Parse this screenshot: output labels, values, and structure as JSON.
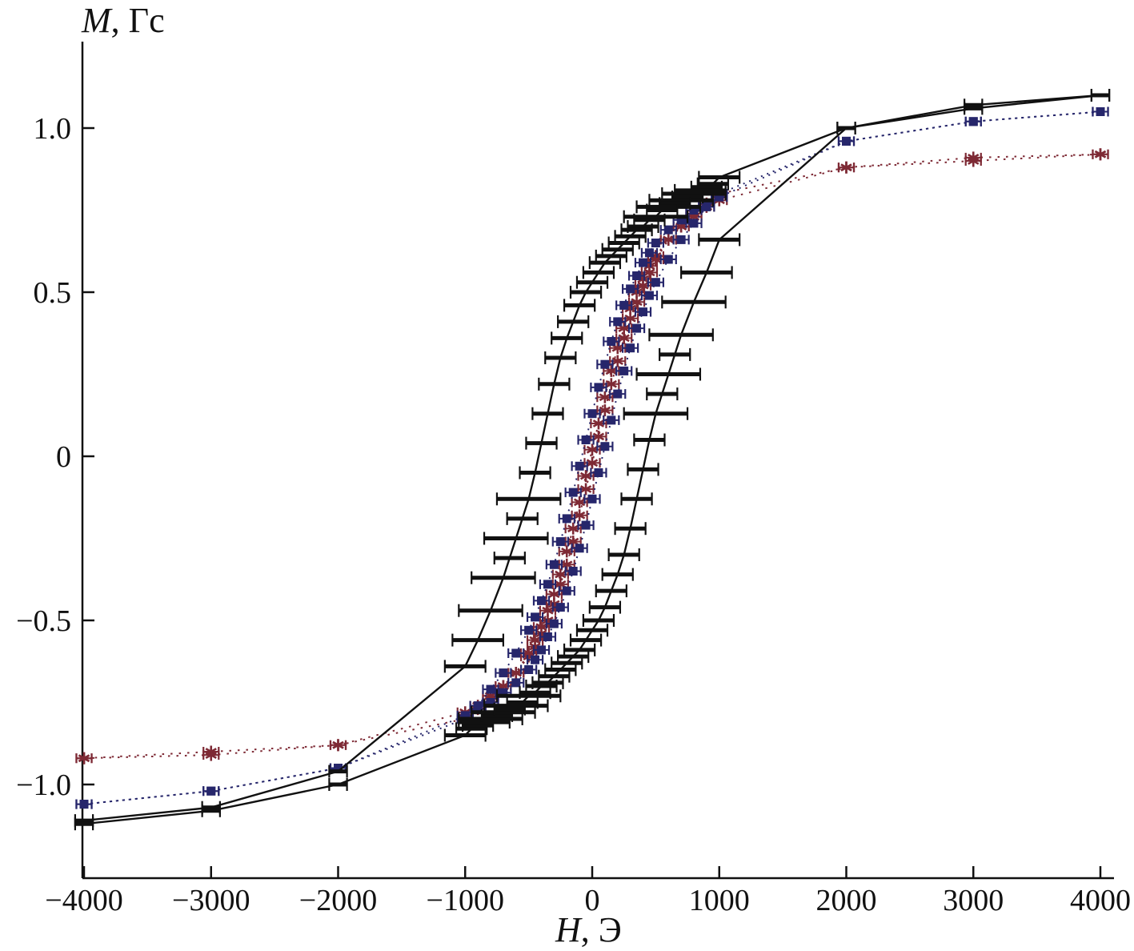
{
  "chart_data": {
    "type": "line",
    "title": "",
    "xlabel": {
      "variable": "H",
      "unit": ", Э"
    },
    "ylabel": {
      "variable": "M",
      "unit": ", Гс"
    },
    "xlim": [
      -4000,
      4000
    ],
    "ylim": [
      -1.25,
      1.25
    ],
    "grid": false,
    "legend": "none",
    "x_ticks": [
      -4000,
      -3000,
      -2000,
      -1000,
      0,
      1000,
      2000,
      3000,
      4000
    ],
    "x_tick_labels": [
      "−4000",
      "−3000",
      "−2000",
      "−1000",
      "0",
      "1000",
      "2000",
      "3000",
      "4000"
    ],
    "y_ticks": [
      -1.0,
      -0.5,
      0,
      0.5,
      1.0
    ],
    "y_tick_labels": [
      "−1.0",
      "−0.5",
      "0",
      "0.5",
      "1.0"
    ],
    "axis_color": "#111111",
    "series": [
      {
        "name": "red-dotted-stars",
        "color": "#7e2a35",
        "line_style": "dotted",
        "line_width": 2,
        "marker": "star",
        "xerr": 60,
        "descending": [
          [
            4000,
            0.92
          ],
          [
            3000,
            0.91
          ],
          [
            2000,
            0.88
          ],
          [
            1000,
            0.78
          ],
          [
            900,
            0.76
          ],
          [
            800,
            0.73
          ],
          [
            700,
            0.7
          ],
          [
            600,
            0.66
          ],
          [
            500,
            0.61
          ],
          [
            450,
            0.58
          ],
          [
            400,
            0.54
          ],
          [
            350,
            0.5
          ],
          [
            300,
            0.45
          ],
          [
            250,
            0.39
          ],
          [
            200,
            0.33
          ],
          [
            150,
            0.26
          ],
          [
            100,
            0.18
          ],
          [
            50,
            0.1
          ],
          [
            0,
            0.02
          ],
          [
            -50,
            -0.06
          ],
          [
            -100,
            -0.14
          ],
          [
            -150,
            -0.22
          ],
          [
            -200,
            -0.29
          ],
          [
            -250,
            -0.36
          ],
          [
            -300,
            -0.42
          ],
          [
            -350,
            -0.47
          ],
          [
            -400,
            -0.52
          ],
          [
            -450,
            -0.56
          ],
          [
            -500,
            -0.6
          ],
          [
            -600,
            -0.66
          ],
          [
            -700,
            -0.7
          ],
          [
            -800,
            -0.74
          ],
          [
            -900,
            -0.77
          ],
          [
            -1000,
            -0.8
          ],
          [
            -2000,
            -0.88
          ],
          [
            -3000,
            -0.9
          ],
          [
            -4000,
            -0.92
          ]
        ],
        "ascending": [
          [
            -4000,
            -0.92
          ],
          [
            -3000,
            -0.91
          ],
          [
            -2000,
            -0.88
          ],
          [
            -1000,
            -0.78
          ],
          [
            -900,
            -0.76
          ],
          [
            -800,
            -0.73
          ],
          [
            -700,
            -0.7
          ],
          [
            -600,
            -0.66
          ],
          [
            -500,
            -0.61
          ],
          [
            -450,
            -0.58
          ],
          [
            -400,
            -0.54
          ],
          [
            -350,
            -0.5
          ],
          [
            -300,
            -0.45
          ],
          [
            -250,
            -0.39
          ],
          [
            -200,
            -0.33
          ],
          [
            -150,
            -0.26
          ],
          [
            -100,
            -0.18
          ],
          [
            -50,
            -0.1
          ],
          [
            0,
            -0.02
          ],
          [
            50,
            0.06
          ],
          [
            100,
            0.14
          ],
          [
            150,
            0.22
          ],
          [
            200,
            0.29
          ],
          [
            250,
            0.36
          ],
          [
            300,
            0.42
          ],
          [
            350,
            0.47
          ],
          [
            400,
            0.52
          ],
          [
            450,
            0.56
          ],
          [
            500,
            0.6
          ],
          [
            600,
            0.66
          ],
          [
            700,
            0.7
          ],
          [
            800,
            0.74
          ],
          [
            900,
            0.77
          ],
          [
            1000,
            0.8
          ],
          [
            2000,
            0.88
          ],
          [
            3000,
            0.9
          ],
          [
            4000,
            0.92
          ]
        ]
      },
      {
        "name": "blue-dashdot-squares",
        "color": "#26266b",
        "line_style": "dash-dot",
        "line_width": 2,
        "marker": "square",
        "xerr": 60,
        "descending": [
          [
            4000,
            1.05
          ],
          [
            3000,
            1.02
          ],
          [
            2000,
            0.96
          ],
          [
            1000,
            0.79
          ],
          [
            900,
            0.77
          ],
          [
            800,
            0.75
          ],
          [
            700,
            0.72
          ],
          [
            600,
            0.69
          ],
          [
            500,
            0.65
          ],
          [
            450,
            0.62
          ],
          [
            400,
            0.59
          ],
          [
            350,
            0.55
          ],
          [
            300,
            0.51
          ],
          [
            250,
            0.46
          ],
          [
            200,
            0.41
          ],
          [
            150,
            0.35
          ],
          [
            100,
            0.28
          ],
          [
            50,
            0.21
          ],
          [
            0,
            0.13
          ],
          [
            -50,
            0.05
          ],
          [
            -100,
            -0.03
          ],
          [
            -150,
            -0.11
          ],
          [
            -200,
            -0.19
          ],
          [
            -250,
            -0.26
          ],
          [
            -300,
            -0.33
          ],
          [
            -350,
            -0.39
          ],
          [
            -400,
            -0.44
          ],
          [
            -450,
            -0.49
          ],
          [
            -500,
            -0.53
          ],
          [
            -600,
            -0.6
          ],
          [
            -700,
            -0.66
          ],
          [
            -800,
            -0.71
          ],
          [
            -900,
            -0.76
          ],
          [
            -1000,
            -0.8
          ],
          [
            -2000,
            -0.95
          ],
          [
            -3000,
            -1.02
          ],
          [
            -4000,
            -1.06
          ]
        ],
        "ascending": [
          [
            -4000,
            -1.06
          ],
          [
            -3000,
            -1.02
          ],
          [
            -2000,
            -0.95
          ],
          [
            -1000,
            -0.79
          ],
          [
            -900,
            -0.77
          ],
          [
            -800,
            -0.75
          ],
          [
            -700,
            -0.72
          ],
          [
            -600,
            -0.69
          ],
          [
            -500,
            -0.65
          ],
          [
            -450,
            -0.62
          ],
          [
            -400,
            -0.59
          ],
          [
            -350,
            -0.55
          ],
          [
            -300,
            -0.51
          ],
          [
            -250,
            -0.46
          ],
          [
            -200,
            -0.41
          ],
          [
            -150,
            -0.35
          ],
          [
            -100,
            -0.28
          ],
          [
            -50,
            -0.21
          ],
          [
            0,
            -0.13
          ],
          [
            50,
            -0.05
          ],
          [
            100,
            0.03
          ],
          [
            150,
            0.11
          ],
          [
            200,
            0.19
          ],
          [
            250,
            0.26
          ],
          [
            300,
            0.33
          ],
          [
            350,
            0.39
          ],
          [
            400,
            0.44
          ],
          [
            450,
            0.49
          ],
          [
            500,
            0.53
          ],
          [
            600,
            0.6
          ],
          [
            700,
            0.66
          ],
          [
            800,
            0.71
          ],
          [
            900,
            0.76
          ],
          [
            1000,
            0.8
          ],
          [
            2000,
            0.96
          ],
          [
            3000,
            1.02
          ],
          [
            4000,
            1.05
          ]
        ]
      },
      {
        "name": "black-solid-errorbars",
        "color": "#111111",
        "line_style": "solid",
        "line_width": 2.4,
        "marker": "hbar",
        "xerr": 120,
        "descending": [
          [
            4000,
            1.1,
            70
          ],
          [
            3000,
            1.06,
            70
          ],
          [
            2000,
            1.0,
            70
          ],
          [
            1000,
            0.85,
            160
          ],
          [
            950,
            0.83
          ],
          [
            900,
            0.82
          ],
          [
            850,
            0.81,
            200
          ],
          [
            800,
            0.8,
            250
          ],
          [
            750,
            0.79
          ],
          [
            700,
            0.78,
            250
          ],
          [
            650,
            0.77
          ],
          [
            600,
            0.76,
            250
          ],
          [
            550,
            0.75
          ],
          [
            500,
            0.73,
            250
          ],
          [
            450,
            0.72
          ],
          [
            400,
            0.7
          ],
          [
            350,
            0.69
          ],
          [
            300,
            0.67
          ],
          [
            250,
            0.65
          ],
          [
            200,
            0.63
          ],
          [
            150,
            0.61
          ],
          [
            100,
            0.59
          ],
          [
            50,
            0.56
          ],
          [
            0,
            0.53
          ],
          [
            -50,
            0.5
          ],
          [
            -100,
            0.46
          ],
          [
            -150,
            0.41
          ],
          [
            -200,
            0.36
          ],
          [
            -250,
            0.3
          ],
          [
            -300,
            0.22
          ],
          [
            -350,
            0.13
          ],
          [
            -400,
            0.04
          ],
          [
            -450,
            -0.05
          ],
          [
            -500,
            -0.13,
            250
          ],
          [
            -550,
            -0.19
          ],
          [
            -600,
            -0.25,
            250
          ],
          [
            -650,
            -0.31
          ],
          [
            -700,
            -0.37,
            250
          ],
          [
            -800,
            -0.47,
            250
          ],
          [
            -900,
            -0.56,
            200
          ],
          [
            -1000,
            -0.64,
            160
          ],
          [
            -2000,
            -0.96,
            70
          ],
          [
            -3000,
            -1.07,
            70
          ],
          [
            -4000,
            -1.11,
            70
          ]
        ],
        "ascending": [
          [
            -4000,
            -1.12,
            70
          ],
          [
            -3000,
            -1.08,
            70
          ],
          [
            -2000,
            -1.0,
            70
          ],
          [
            -1000,
            -0.85,
            160
          ],
          [
            -950,
            -0.83
          ],
          [
            -900,
            -0.82
          ],
          [
            -850,
            -0.81,
            200
          ],
          [
            -800,
            -0.8,
            250
          ],
          [
            -750,
            -0.79
          ],
          [
            -700,
            -0.78,
            250
          ],
          [
            -650,
            -0.77
          ],
          [
            -600,
            -0.76,
            250
          ],
          [
            -550,
            -0.75
          ],
          [
            -500,
            -0.73,
            250
          ],
          [
            -450,
            -0.72
          ],
          [
            -400,
            -0.7
          ],
          [
            -350,
            -0.69
          ],
          [
            -300,
            -0.67
          ],
          [
            -250,
            -0.65
          ],
          [
            -200,
            -0.63
          ],
          [
            -150,
            -0.61
          ],
          [
            -100,
            -0.59
          ],
          [
            -50,
            -0.56
          ],
          [
            0,
            -0.53
          ],
          [
            50,
            -0.5
          ],
          [
            100,
            -0.46
          ],
          [
            150,
            -0.41
          ],
          [
            200,
            -0.36
          ],
          [
            250,
            -0.3
          ],
          [
            300,
            -0.22
          ],
          [
            350,
            -0.13
          ],
          [
            400,
            -0.04
          ],
          [
            450,
            0.05
          ],
          [
            500,
            0.13,
            250
          ],
          [
            550,
            0.19
          ],
          [
            600,
            0.25,
            250
          ],
          [
            650,
            0.31
          ],
          [
            700,
            0.37,
            250
          ],
          [
            800,
            0.47,
            250
          ],
          [
            900,
            0.56,
            200
          ],
          [
            1000,
            0.66,
            160
          ],
          [
            2000,
            1.0,
            70
          ],
          [
            3000,
            1.07,
            70
          ],
          [
            4000,
            1.1,
            70
          ]
        ]
      }
    ]
  }
}
